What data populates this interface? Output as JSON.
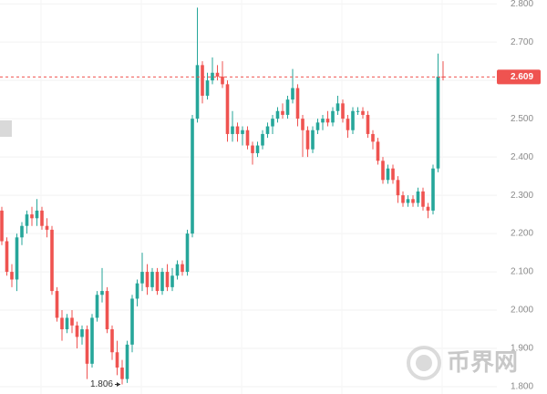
{
  "chart_data": {
    "type": "candlestick",
    "open": [
      2.26,
      2.18,
      2.1,
      2.08,
      2.19,
      2.22,
      2.25,
      2.24,
      2.26,
      2.22,
      2.21,
      2.05,
      1.98,
      1.95,
      1.98,
      1.96,
      1.93,
      1.95,
      1.86,
      1.98,
      2.04,
      2.05,
      1.95,
      1.89,
      1.85,
      1.82,
      1.91,
      2.03,
      2.07,
      2.1,
      2.06,
      2.1,
      2.05,
      2.1,
      2.06,
      2.09,
      2.12,
      2.1,
      2.2,
      2.5,
      2.64,
      2.56,
      2.6,
      2.62,
      2.61,
      2.59,
      2.46,
      2.48,
      2.46,
      2.47,
      2.43,
      2.41,
      2.43,
      2.46,
      2.48,
      2.5,
      2.52,
      2.51,
      2.55,
      2.58,
      2.5,
      2.47,
      2.42,
      2.47,
      2.49,
      2.5,
      2.49,
      2.52,
      2.54,
      2.5,
      2.47,
      2.52,
      2.52,
      2.51,
      2.46,
      2.44,
      2.39,
      2.34,
      2.37,
      2.34,
      2.3,
      2.28,
      2.29,
      2.28,
      2.31,
      2.27,
      2.26,
      2.37,
      2.61
    ],
    "high": [
      2.27,
      2.19,
      2.12,
      2.2,
      2.23,
      2.26,
      2.27,
      2.29,
      2.27,
      2.24,
      2.22,
      2.06,
      2.0,
      1.99,
      2.0,
      1.97,
      1.96,
      1.96,
      1.99,
      2.05,
      2.11,
      2.06,
      1.96,
      1.92,
      1.87,
      1.92,
      2.04,
      2.08,
      2.15,
      2.12,
      2.11,
      2.11,
      2.11,
      2.12,
      2.11,
      2.13,
      2.13,
      2.21,
      2.51,
      2.79,
      2.65,
      2.62,
      2.66,
      2.64,
      2.65,
      2.6,
      2.52,
      2.49,
      2.48,
      2.48,
      2.44,
      2.44,
      2.47,
      2.49,
      2.51,
      2.53,
      2.54,
      2.56,
      2.63,
      2.59,
      2.51,
      2.48,
      2.48,
      2.5,
      2.51,
      2.52,
      2.53,
      2.56,
      2.55,
      2.51,
      2.53,
      2.53,
      2.53,
      2.52,
      2.47,
      2.45,
      2.4,
      2.38,
      2.38,
      2.35,
      2.31,
      2.3,
      2.3,
      2.32,
      2.32,
      2.28,
      2.38,
      2.67,
      2.65
    ],
    "low": [
      2.17,
      2.09,
      2.06,
      2.05,
      2.17,
      2.2,
      2.22,
      2.22,
      2.21,
      2.19,
      2.04,
      1.97,
      1.92,
      1.94,
      1.94,
      1.9,
      1.91,
      1.82,
      1.85,
      1.97,
      2.02,
      1.94,
      1.87,
      1.83,
      1.806,
      1.81,
      1.89,
      2.01,
      2.05,
      2.04,
      2.05,
      2.04,
      2.04,
      2.05,
      2.05,
      2.08,
      2.09,
      2.09,
      2.19,
      2.49,
      2.54,
      2.55,
      2.59,
      2.6,
      2.58,
      2.44,
      2.44,
      2.44,
      2.43,
      2.42,
      2.38,
      2.4,
      2.42,
      2.45,
      2.46,
      2.49,
      2.5,
      2.5,
      2.54,
      2.48,
      2.4,
      2.4,
      2.41,
      2.46,
      2.47,
      2.48,
      2.48,
      2.51,
      2.49,
      2.45,
      2.46,
      2.51,
      2.5,
      2.45,
      2.42,
      2.38,
      2.33,
      2.33,
      2.33,
      2.28,
      2.27,
      2.27,
      2.27,
      2.27,
      2.26,
      2.24,
      2.25,
      2.36,
      2.6
    ],
    "close": [
      2.18,
      2.1,
      2.08,
      2.19,
      2.22,
      2.25,
      2.24,
      2.26,
      2.22,
      2.21,
      2.05,
      1.98,
      1.95,
      1.98,
      1.96,
      1.93,
      1.95,
      1.86,
      1.98,
      2.04,
      2.05,
      1.95,
      1.89,
      1.85,
      1.82,
      1.91,
      2.03,
      2.07,
      2.1,
      2.06,
      2.1,
      2.05,
      2.1,
      2.06,
      2.09,
      2.12,
      2.1,
      2.2,
      2.5,
      2.64,
      2.56,
      2.6,
      2.62,
      2.61,
      2.59,
      2.46,
      2.48,
      2.46,
      2.47,
      2.43,
      2.41,
      2.43,
      2.46,
      2.48,
      2.5,
      2.52,
      2.51,
      2.55,
      2.58,
      2.5,
      2.47,
      2.42,
      2.47,
      2.49,
      2.5,
      2.49,
      2.52,
      2.54,
      2.5,
      2.47,
      2.52,
      2.52,
      2.51,
      2.46,
      2.44,
      2.39,
      2.34,
      2.37,
      2.34,
      2.3,
      2.28,
      2.29,
      2.28,
      2.31,
      2.27,
      2.26,
      2.37,
      2.61,
      2.609
    ],
    "up_color": "#26a69a",
    "down_color": "#ef5350",
    "ylim": [
      1.781,
      2.81
    ],
    "yticks": [
      {
        "value": 1.8,
        "label": "1.800"
      },
      {
        "value": 1.9,
        "label": "1.900"
      },
      {
        "value": 2.0,
        "label": "2.000"
      },
      {
        "value": 2.1,
        "label": "2.100"
      },
      {
        "value": 2.2,
        "label": "2.200"
      },
      {
        "value": 2.3,
        "label": "2.300"
      },
      {
        "value": 2.4,
        "label": "2.400"
      },
      {
        "value": 2.5,
        "label": "2.500"
      },
      {
        "value": 2.6,
        "label": "2.600"
      },
      {
        "value": 2.7,
        "label": "2.700"
      },
      {
        "value": 2.8,
        "label": "2.800"
      }
    ],
    "grid": true,
    "last_price": 2.609,
    "min_label": 1.806,
    "watermark": "币界网"
  }
}
